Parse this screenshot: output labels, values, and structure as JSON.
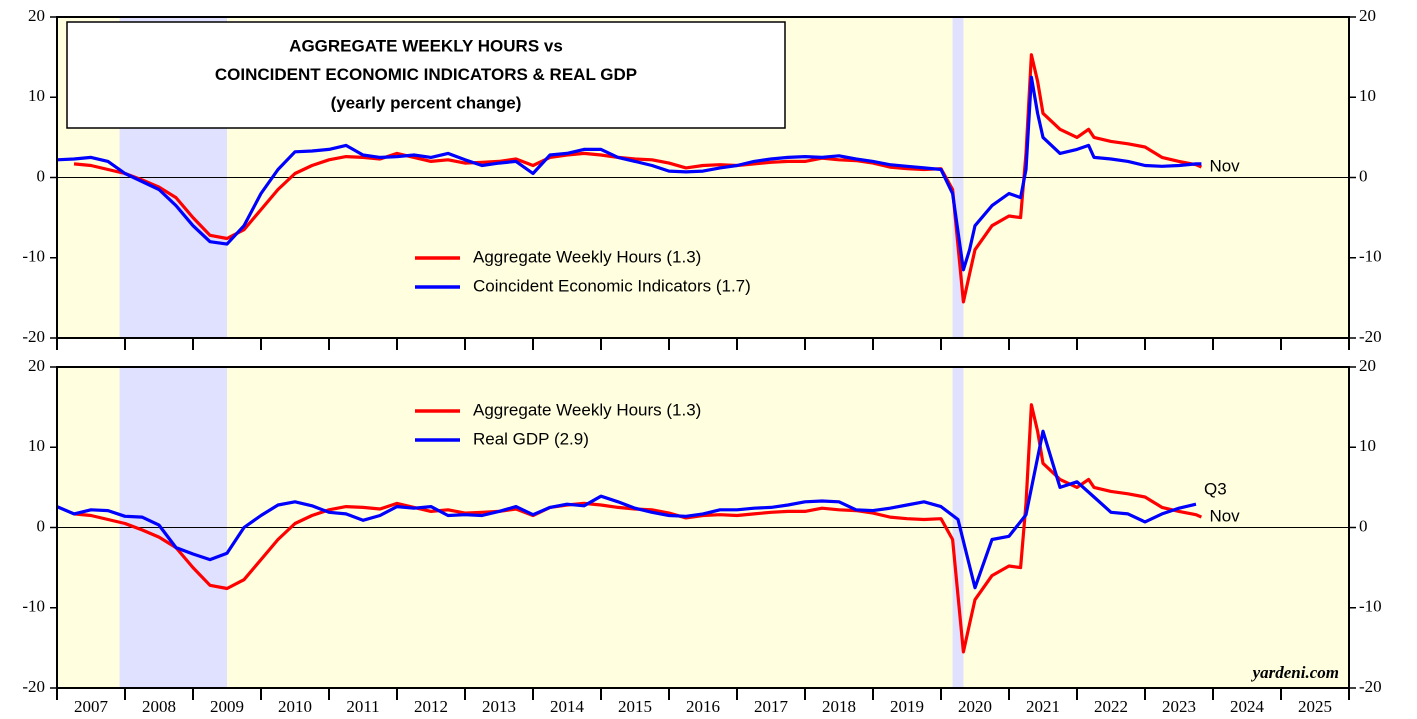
{
  "chart_data": [
    {
      "type": "line",
      "title": [
        "AGGREGATE WEEKLY HOURS vs",
        "COINCIDENT ECONOMIC INDICATORS & REAL GDP",
        "(yearly percent change)"
      ],
      "xlim": [
        2007,
        2026
      ],
      "xticks": [
        2007,
        2008,
        2009,
        2010,
        2011,
        2012,
        2013,
        2014,
        2015,
        2016,
        2017,
        2018,
        2019,
        2020,
        2021,
        2022,
        2023,
        2024,
        2025,
        2026
      ],
      "ylim": [
        -20,
        20
      ],
      "yticks": [
        -20,
        -10,
        0,
        10,
        20
      ],
      "shaded_ranges": [
        [
          2007.92,
          2009.5
        ],
        [
          2020.17,
          2020.33
        ]
      ],
      "shade_color": "#e0e0ff",
      "background": "#ffffe0",
      "series": [
        {
          "name": "Aggregate Weekly Hours (1.3)",
          "color": "#ff0000",
          "end_label": "Nov",
          "x": [
            2007.25,
            2007.5,
            2007.75,
            2008,
            2008.25,
            2008.5,
            2008.75,
            2009,
            2009.25,
            2009.5,
            2009.75,
            2010,
            2010.25,
            2010.5,
            2010.75,
            2011,
            2011.25,
            2011.5,
            2011.75,
            2012,
            2012.25,
            2012.5,
            2012.75,
            2013,
            2013.25,
            2013.5,
            2013.75,
            2014,
            2014.25,
            2014.5,
            2014.75,
            2015,
            2015.25,
            2015.5,
            2015.75,
            2016,
            2016.25,
            2016.5,
            2016.75,
            2017,
            2017.25,
            2017.5,
            2017.75,
            2018,
            2018.25,
            2018.5,
            2018.75,
            2019,
            2019.25,
            2019.5,
            2019.75,
            2020,
            2020.17,
            2020.33,
            2020.42,
            2020.5,
            2020.75,
            2021,
            2021.17,
            2021.25,
            2021.33,
            2021.42,
            2021.5,
            2021.75,
            2022,
            2022.17,
            2022.25,
            2022.5,
            2022.75,
            2023,
            2023.25,
            2023.5,
            2023.75,
            2023.83
          ],
          "values": [
            1.7,
            1.5,
            1.0,
            0.5,
            -0.3,
            -1.2,
            -2.5,
            -5.0,
            -7.2,
            -7.6,
            -6.5,
            -4.0,
            -1.5,
            0.5,
            1.5,
            2.2,
            2.6,
            2.5,
            2.3,
            3.0,
            2.5,
            2.0,
            2.2,
            1.8,
            1.9,
            2.0,
            2.3,
            1.5,
            2.5,
            2.8,
            3.0,
            2.8,
            2.5,
            2.3,
            2.2,
            1.8,
            1.2,
            1.5,
            1.6,
            1.5,
            1.7,
            1.9,
            2.0,
            2.0,
            2.4,
            2.2,
            2.1,
            1.8,
            1.3,
            1.1,
            1.0,
            1.1,
            -1.5,
            -15.5,
            -12,
            -9,
            -6,
            -4.8,
            -5.0,
            3.0,
            15.3,
            12,
            8,
            6.0,
            5.0,
            6.0,
            5.0,
            4.5,
            4.2,
            3.8,
            2.5,
            2.0,
            1.6,
            1.3
          ]
        },
        {
          "name": "Coincident Economic Indicators (1.7)",
          "color": "#0000ff",
          "x": [
            2007,
            2007.25,
            2007.5,
            2007.75,
            2008,
            2008.25,
            2008.5,
            2008.75,
            2009,
            2009.25,
            2009.5,
            2009.75,
            2010,
            2010.25,
            2010.5,
            2010.75,
            2011,
            2011.25,
            2011.5,
            2011.75,
            2012,
            2012.25,
            2012.5,
            2012.75,
            2013,
            2013.25,
            2013.5,
            2013.75,
            2014,
            2014.25,
            2014.5,
            2014.75,
            2015,
            2015.25,
            2015.5,
            2015.75,
            2016,
            2016.25,
            2016.5,
            2016.75,
            2017,
            2017.25,
            2017.5,
            2017.75,
            2018,
            2018.25,
            2018.5,
            2018.75,
            2019,
            2019.25,
            2019.5,
            2019.75,
            2020,
            2020.17,
            2020.33,
            2020.42,
            2020.5,
            2020.75,
            2021,
            2021.17,
            2021.25,
            2021.33,
            2021.42,
            2021.5,
            2021.75,
            2022,
            2022.17,
            2022.25,
            2022.5,
            2022.75,
            2023,
            2023.25,
            2023.5,
            2023.75,
            2023.83
          ],
          "values": [
            2.2,
            2.3,
            2.5,
            2.0,
            0.5,
            -0.5,
            -1.5,
            -3.5,
            -6.0,
            -8.0,
            -8.3,
            -6.0,
            -2.0,
            1.0,
            3.2,
            3.3,
            3.5,
            4.0,
            2.8,
            2.5,
            2.6,
            2.8,
            2.5,
            3.0,
            2.2,
            1.5,
            1.8,
            2.0,
            0.5,
            2.8,
            3.0,
            3.5,
            3.5,
            2.5,
            2.0,
            1.5,
            0.8,
            0.7,
            0.8,
            1.2,
            1.5,
            2.0,
            2.3,
            2.5,
            2.6,
            2.5,
            2.7,
            2.3,
            2.0,
            1.6,
            1.4,
            1.2,
            1.0,
            -2,
            -11.5,
            -9,
            -6,
            -3.5,
            -2.0,
            -2.5,
            1.0,
            12.5,
            8,
            5,
            3.0,
            3.5,
            4.0,
            2.5,
            2.3,
            2.0,
            1.5,
            1.4,
            1.5,
            1.7,
            1.7
          ]
        }
      ]
    },
    {
      "type": "line",
      "xlim": [
        2007,
        2026
      ],
      "xticks": [
        2007,
        2008,
        2009,
        2010,
        2011,
        2012,
        2013,
        2014,
        2015,
        2016,
        2017,
        2018,
        2019,
        2020,
        2021,
        2022,
        2023,
        2024,
        2025,
        2026
      ],
      "year_labels": [
        "2007",
        "2008",
        "2009",
        "2010",
        "2011",
        "2012",
        "2013",
        "2014",
        "2015",
        "2016",
        "2017",
        "2018",
        "2019",
        "2020",
        "2021",
        "2022",
        "2023",
        "2024",
        "2025"
      ],
      "ylim": [
        -20,
        20
      ],
      "yticks": [
        -20,
        -10,
        0,
        10,
        20
      ],
      "shaded_ranges": [
        [
          2007.92,
          2009.5
        ],
        [
          2020.17,
          2020.33
        ]
      ],
      "shade_color": "#e0e0ff",
      "background": "#ffffe0",
      "source": "yardeni.com",
      "series": [
        {
          "name": "Aggregate Weekly Hours (1.3)",
          "color": "#ff0000",
          "end_label": "Nov",
          "x": [
            2007.25,
            2007.5,
            2007.75,
            2008,
            2008.25,
            2008.5,
            2008.75,
            2009,
            2009.25,
            2009.5,
            2009.75,
            2010,
            2010.25,
            2010.5,
            2010.75,
            2011,
            2011.25,
            2011.5,
            2011.75,
            2012,
            2012.25,
            2012.5,
            2012.75,
            2013,
            2013.25,
            2013.5,
            2013.75,
            2014,
            2014.25,
            2014.5,
            2014.75,
            2015,
            2015.25,
            2015.5,
            2015.75,
            2016,
            2016.25,
            2016.5,
            2016.75,
            2017,
            2017.25,
            2017.5,
            2017.75,
            2018,
            2018.25,
            2018.5,
            2018.75,
            2019,
            2019.25,
            2019.5,
            2019.75,
            2020,
            2020.17,
            2020.33,
            2020.42,
            2020.5,
            2020.75,
            2021,
            2021.17,
            2021.25,
            2021.33,
            2021.42,
            2021.5,
            2021.75,
            2022,
            2022.17,
            2022.25,
            2022.5,
            2022.75,
            2023,
            2023.25,
            2023.5,
            2023.75,
            2023.83
          ],
          "values": [
            1.7,
            1.5,
            1.0,
            0.5,
            -0.3,
            -1.2,
            -2.5,
            -5.0,
            -7.2,
            -7.6,
            -6.5,
            -4.0,
            -1.5,
            0.5,
            1.5,
            2.2,
            2.6,
            2.5,
            2.3,
            3.0,
            2.5,
            2.0,
            2.2,
            1.8,
            1.9,
            2.0,
            2.3,
            1.5,
            2.5,
            2.8,
            3.0,
            2.8,
            2.5,
            2.3,
            2.2,
            1.8,
            1.2,
            1.5,
            1.6,
            1.5,
            1.7,
            1.9,
            2.0,
            2.0,
            2.4,
            2.2,
            2.1,
            1.8,
            1.3,
            1.1,
            1.0,
            1.1,
            -1.5,
            -15.5,
            -12,
            -9,
            -6,
            -4.8,
            -5.0,
            3.0,
            15.3,
            12,
            8,
            6.0,
            5.0,
            6.0,
            5.0,
            4.5,
            4.2,
            3.8,
            2.5,
            2.0,
            1.6,
            1.3
          ]
        },
        {
          "name": "Real GDP (2.9)",
          "color": "#0000ff",
          "end_label": "Q3",
          "x": [
            2007,
            2007.25,
            2007.5,
            2007.75,
            2008,
            2008.25,
            2008.5,
            2008.75,
            2009,
            2009.25,
            2009.5,
            2009.75,
            2010,
            2010.25,
            2010.5,
            2010.75,
            2011,
            2011.25,
            2011.5,
            2011.75,
            2012,
            2012.25,
            2012.5,
            2012.75,
            2013,
            2013.25,
            2013.5,
            2013.75,
            2014,
            2014.25,
            2014.5,
            2014.75,
            2015,
            2015.25,
            2015.5,
            2015.75,
            2016,
            2016.25,
            2016.5,
            2016.75,
            2017,
            2017.25,
            2017.5,
            2017.75,
            2018,
            2018.25,
            2018.5,
            2018.75,
            2019,
            2019.25,
            2019.5,
            2019.75,
            2020,
            2020.25,
            2020.5,
            2020.75,
            2021,
            2021.25,
            2021.5,
            2021.75,
            2022,
            2022.25,
            2022.5,
            2022.75,
            2023,
            2023.25,
            2023.5,
            2023.75
          ],
          "values": [
            2.6,
            1.7,
            2.2,
            2.1,
            1.4,
            1.3,
            0.3,
            -2.5,
            -3.3,
            -4.0,
            -3.2,
            0.0,
            1.5,
            2.8,
            3.2,
            2.7,
            1.9,
            1.7,
            0.9,
            1.5,
            2.6,
            2.4,
            2.6,
            1.5,
            1.6,
            1.5,
            2.0,
            2.6,
            1.6,
            2.5,
            2.9,
            2.7,
            3.9,
            3.2,
            2.4,
            1.9,
            1.5,
            1.4,
            1.7,
            2.2,
            2.2,
            2.4,
            2.5,
            2.8,
            3.2,
            3.3,
            3.2,
            2.2,
            2.1,
            2.4,
            2.8,
            3.2,
            2.6,
            1.0,
            -7.5,
            -1.5,
            -1.1,
            1.6,
            12.0,
            5.0,
            5.7,
            3.8,
            1.9,
            1.7,
            0.7,
            1.7,
            2.4,
            2.9
          ]
        }
      ]
    }
  ]
}
